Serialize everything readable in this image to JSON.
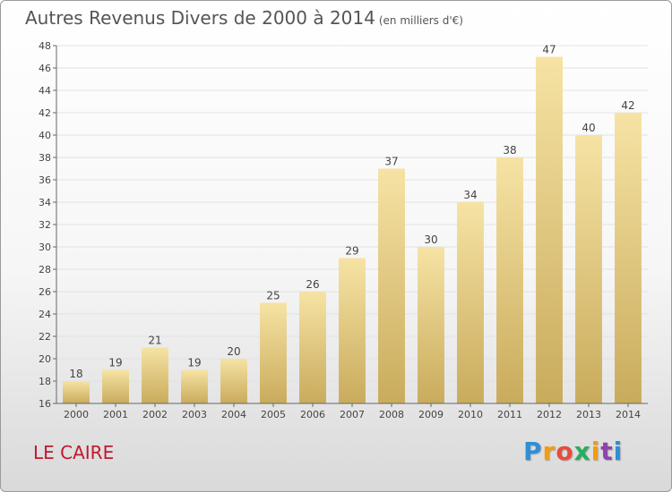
{
  "header": {
    "title": "Autres Revenus Divers de 2000 à 2014",
    "unit": "(en milliers d'€)"
  },
  "footer": {
    "place": "LE CAIRE",
    "brand": [
      "P",
      "r",
      "o",
      "x",
      "i",
      "t",
      "i"
    ]
  },
  "colors": {
    "bar_top": "#f6e3a4",
    "bar_bottom": "#c9ab5c",
    "brand": [
      "#2f8fd6",
      "#f39c12",
      "#e74c3c",
      "#27ae60",
      "#f39c12",
      "#8e44ad",
      "#2f8fd6"
    ]
  },
  "chart_data": {
    "type": "bar",
    "title": "Autres Revenus Divers de 2000 à 2014",
    "xlabel": "",
    "ylabel": "",
    "ylim": [
      16,
      48
    ],
    "yticks": [
      16,
      18,
      20,
      22,
      24,
      26,
      28,
      30,
      32,
      34,
      36,
      38,
      40,
      42,
      44,
      46,
      48
    ],
    "categories": [
      "2000",
      "2001",
      "2002",
      "2003",
      "2004",
      "2005",
      "2006",
      "2007",
      "2008",
      "2009",
      "2010",
      "2011",
      "2012",
      "2013",
      "2014"
    ],
    "values": [
      18,
      19,
      21,
      19,
      20,
      25,
      26,
      29,
      37,
      30,
      34,
      38,
      47,
      40,
      42
    ],
    "grid": true
  }
}
